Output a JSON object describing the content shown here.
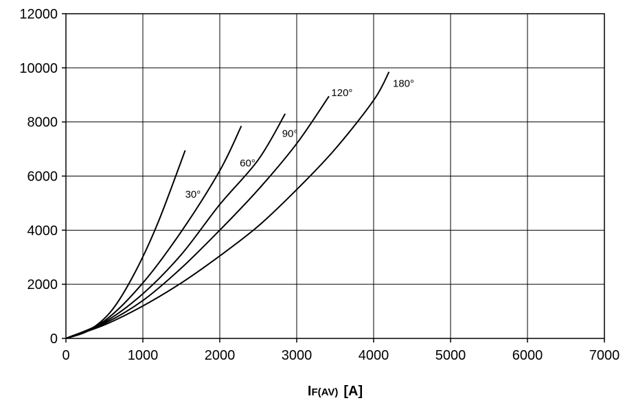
{
  "chart_data": {
    "type": "line",
    "title": "",
    "xlabel": {
      "main": "I",
      "subscript": "F(AV)",
      "unit": "[A]"
    },
    "ylabel": "",
    "xlim": [
      0,
      7000
    ],
    "ylim": [
      0,
      12000
    ],
    "xticks": [
      0,
      1000,
      2000,
      3000,
      4000,
      5000,
      6000,
      7000
    ],
    "yticks": [
      0,
      2000,
      4000,
      6000,
      8000,
      10000,
      12000
    ],
    "grid": true,
    "line_color": "#000000",
    "series": [
      {
        "name": "30°",
        "points": [
          [
            0,
            0
          ],
          [
            300,
            300
          ],
          [
            600,
            1050
          ],
          [
            900,
            2450
          ],
          [
            1200,
            4300
          ],
          [
            1550,
            6950
          ]
        ]
      },
      {
        "name": "60°",
        "points": [
          [
            0,
            0
          ],
          [
            500,
            650
          ],
          [
            1000,
            2050
          ],
          [
            1500,
            3950
          ],
          [
            2000,
            6200
          ],
          [
            2280,
            7850
          ]
        ]
      },
      {
        "name": "90°",
        "points": [
          [
            0,
            0
          ],
          [
            500,
            600
          ],
          [
            1000,
            1650
          ],
          [
            1500,
            3100
          ],
          [
            2000,
            4950
          ],
          [
            2500,
            6600
          ],
          [
            2850,
            8300
          ]
        ]
      },
      {
        "name": "120°",
        "points": [
          [
            0,
            0
          ],
          [
            500,
            550
          ],
          [
            1000,
            1400
          ],
          [
            1500,
            2600
          ],
          [
            2000,
            4000
          ],
          [
            2500,
            5500
          ],
          [
            3000,
            7200
          ],
          [
            3420,
            8950
          ]
        ]
      },
      {
        "name": "180°",
        "points": [
          [
            0,
            0
          ],
          [
            500,
            500
          ],
          [
            1000,
            1200
          ],
          [
            1500,
            2050
          ],
          [
            2000,
            3050
          ],
          [
            2500,
            4150
          ],
          [
            3000,
            5500
          ],
          [
            3500,
            7000
          ],
          [
            4000,
            8800
          ],
          [
            4200,
            9850
          ]
        ]
      }
    ],
    "annotations": [
      {
        "text": "30°",
        "x": 1550,
        "y": 5200
      },
      {
        "text": "60°",
        "x": 2260,
        "y": 6350
      },
      {
        "text": "90°",
        "x": 2810,
        "y": 7450
      },
      {
        "text": "120°",
        "x": 3450,
        "y": 8950
      },
      {
        "text": "180°",
        "x": 4250,
        "y": 9300
      }
    ]
  }
}
